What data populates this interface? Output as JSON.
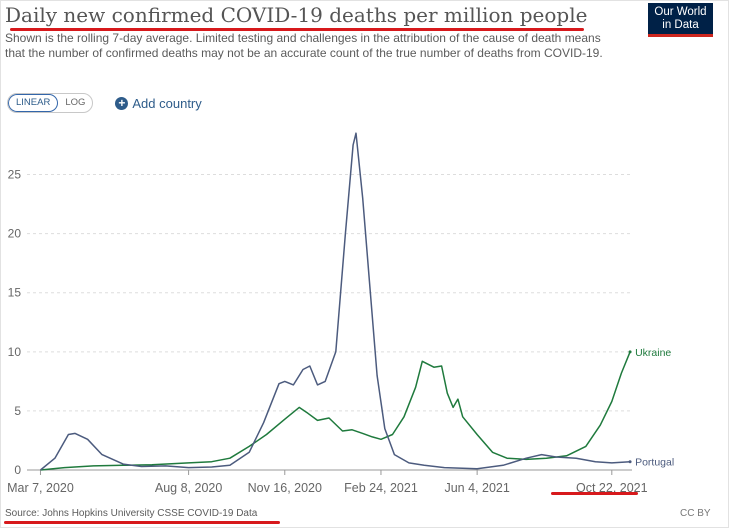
{
  "title": "Daily new confirmed COVID-19 deaths per million people",
  "subtitle": "Shown is the rolling 7-day average. Limited testing and challenges in the attribution of the cause of death means that the number of confirmed deaths may not be an accurate count of the true number of deaths from COVID-19.",
  "logo": {
    "line1": "Our World",
    "line2": "in Data",
    "bg_color": "#002147",
    "bar_color": "#ce261e"
  },
  "controls": {
    "linear_label": "LINEAR",
    "log_label": "LOG",
    "active": "LINEAR",
    "add_country_label": "Add country",
    "add_icon": "plus-circle-icon"
  },
  "source": {
    "prefix": "Source: ",
    "name": "Johns Hopkins University CSSE COVID-19 Data"
  },
  "license": "CC BY",
  "annotation_color": "#d7191c",
  "chart_data": {
    "type": "line",
    "y_ticks": [
      "0",
      "5",
      "10",
      "15",
      "20",
      "25"
    ],
    "x_ticks": [
      "Mar 7, 2020",
      "Aug 8, 2020",
      "Nov 16, 2020",
      "Feb 24, 2021",
      "Jun 4, 2021",
      "Oct 22, 2021"
    ],
    "ylim": [
      0,
      28.6
    ],
    "xlim": [
      "2020-02-22",
      "2021-11-12"
    ],
    "grid": "horizontal dashed",
    "legend": "inline labels at line ends",
    "series": [
      {
        "name": "Ukraine",
        "color": "#1f7a3d",
        "points": [
          [
            "2020-03-07",
            0
          ],
          [
            "2020-04-01",
            0.2
          ],
          [
            "2020-05-01",
            0.35
          ],
          [
            "2020-06-01",
            0.4
          ],
          [
            "2020-07-01",
            0.45
          ],
          [
            "2020-08-08",
            0.6
          ],
          [
            "2020-09-01",
            0.7
          ],
          [
            "2020-09-20",
            1
          ],
          [
            "2020-10-10",
            2
          ],
          [
            "2020-10-28",
            3
          ],
          [
            "2020-11-16",
            4.3
          ],
          [
            "2020-12-01",
            5.3
          ],
          [
            "2020-12-10",
            4.8
          ],
          [
            "2020-12-20",
            4.2
          ],
          [
            "2021-01-01",
            4.4
          ],
          [
            "2021-01-15",
            3.3
          ],
          [
            "2021-01-25",
            3.4
          ],
          [
            "2021-02-05",
            3.1
          ],
          [
            "2021-02-15",
            2.8
          ],
          [
            "2021-02-24",
            2.6
          ],
          [
            "2021-03-08",
            3
          ],
          [
            "2021-03-20",
            4.5
          ],
          [
            "2021-04-01",
            7
          ],
          [
            "2021-04-08",
            9.2
          ],
          [
            "2021-04-20",
            8.7
          ],
          [
            "2021-04-28",
            8.8
          ],
          [
            "2021-05-04",
            6.5
          ],
          [
            "2021-05-10",
            5.3
          ],
          [
            "2021-05-15",
            6
          ],
          [
            "2021-05-20",
            4.5
          ],
          [
            "2021-06-04",
            3
          ],
          [
            "2021-06-20",
            1.5
          ],
          [
            "2021-07-05",
            1
          ],
          [
            "2021-07-25",
            0.9
          ],
          [
            "2021-08-15",
            1
          ],
          [
            "2021-09-05",
            1.2
          ],
          [
            "2021-09-25",
            2
          ],
          [
            "2021-10-10",
            3.8
          ],
          [
            "2021-10-22",
            5.8
          ],
          [
            "2021-11-01",
            8.2
          ],
          [
            "2021-11-10",
            10
          ]
        ]
      },
      {
        "name": "Portugal",
        "color": "#4c5b7e",
        "points": [
          [
            "2020-03-07",
            0
          ],
          [
            "2020-03-22",
            1
          ],
          [
            "2020-04-05",
            3
          ],
          [
            "2020-04-12",
            3.1
          ],
          [
            "2020-04-25",
            2.6
          ],
          [
            "2020-05-10",
            1.3
          ],
          [
            "2020-06-01",
            0.5
          ],
          [
            "2020-06-20",
            0.3
          ],
          [
            "2020-07-15",
            0.35
          ],
          [
            "2020-08-08",
            0.2
          ],
          [
            "2020-09-01",
            0.25
          ],
          [
            "2020-09-20",
            0.4
          ],
          [
            "2020-10-10",
            1.5
          ],
          [
            "2020-10-25",
            4
          ],
          [
            "2020-11-10",
            7.3
          ],
          [
            "2020-11-16",
            7.5
          ],
          [
            "2020-11-25",
            7.2
          ],
          [
            "2020-12-05",
            8.5
          ],
          [
            "2020-12-12",
            8.8
          ],
          [
            "2020-12-20",
            7.2
          ],
          [
            "2020-12-28",
            7.5
          ],
          [
            "2021-01-08",
            10
          ],
          [
            "2021-01-18",
            20
          ],
          [
            "2021-01-26",
            27.5
          ],
          [
            "2021-01-29",
            28.5
          ],
          [
            "2021-02-05",
            23
          ],
          [
            "2021-02-12",
            16
          ],
          [
            "2021-02-20",
            8
          ],
          [
            "2021-02-28",
            3.5
          ],
          [
            "2021-03-10",
            1.3
          ],
          [
            "2021-03-25",
            0.6
          ],
          [
            "2021-04-10",
            0.4
          ],
          [
            "2021-05-01",
            0.2
          ],
          [
            "2021-06-04",
            0.1
          ],
          [
            "2021-07-01",
            0.4
          ],
          [
            "2021-07-25",
            1
          ],
          [
            "2021-08-10",
            1.3
          ],
          [
            "2021-08-25",
            1.1
          ],
          [
            "2021-09-15",
            1
          ],
          [
            "2021-10-05",
            0.7
          ],
          [
            "2021-10-22",
            0.6
          ],
          [
            "2021-11-10",
            0.7
          ]
        ]
      }
    ]
  }
}
